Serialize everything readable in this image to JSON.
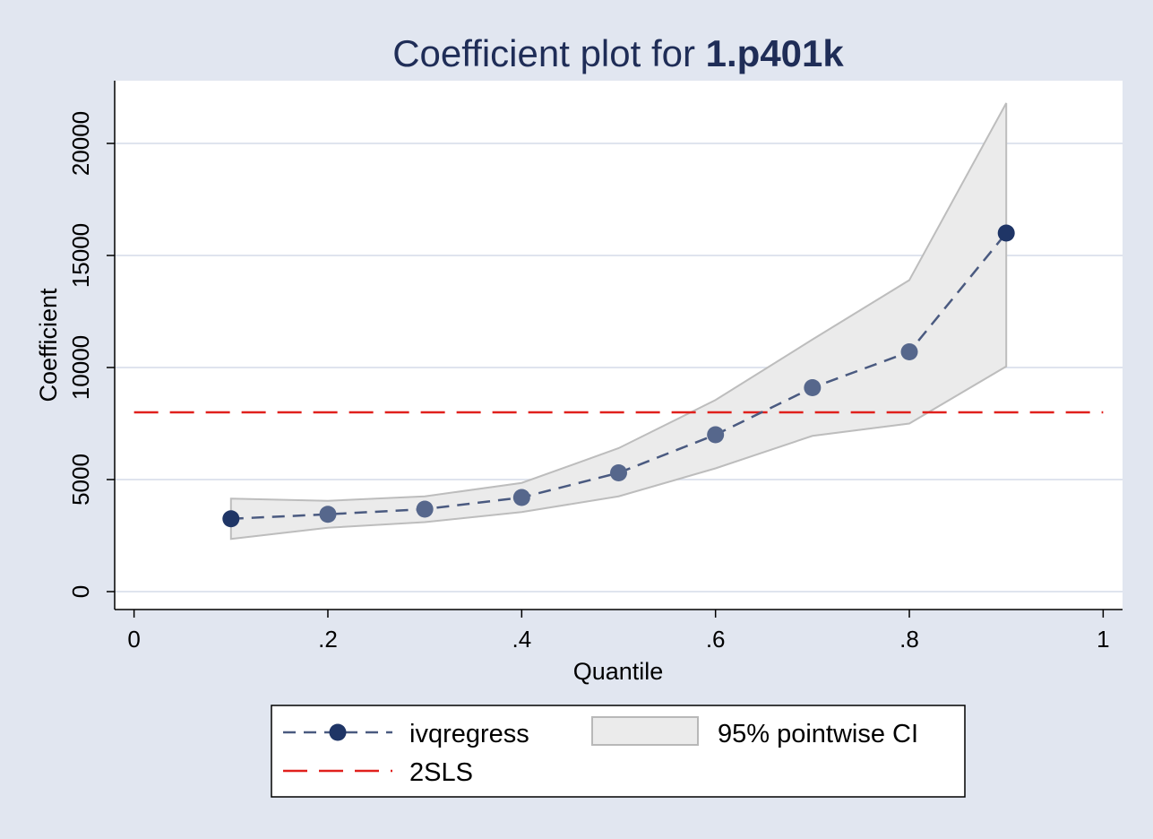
{
  "chart_data": {
    "type": "line",
    "title_prefix": "Coefficient plot for ",
    "title_bold": "1.p401k",
    "xlabel": "Quantile",
    "ylabel": "Coefficient",
    "xlim": [
      -0.02,
      1.02
    ],
    "ylim": [
      -800,
      22800
    ],
    "x_ticks": [
      0,
      0.2,
      0.4,
      0.6,
      0.8,
      1
    ],
    "x_tick_labels": [
      "0",
      ".2",
      ".4",
      ".6",
      ".8",
      "1"
    ],
    "y_ticks": [
      0,
      5000,
      10000,
      15000,
      20000
    ],
    "y_tick_labels": [
      "0",
      "5000",
      "10000",
      "15000",
      "20000"
    ],
    "grid": true,
    "legend_position": "bottom",
    "series": [
      {
        "name": "ivqregress",
        "style": "dashed-markers",
        "color": "#4a5a80",
        "marker_color": "#56678c",
        "x": [
          0.1,
          0.2,
          0.3,
          0.4,
          0.5,
          0.6,
          0.7,
          0.8,
          0.9
        ],
        "y": [
          3250,
          3450,
          3680,
          4200,
          5300,
          7000,
          9100,
          10700,
          16000
        ]
      },
      {
        "name": "95% pointwise CI",
        "style": "band",
        "color": "#ebebeb",
        "x": [
          0.1,
          0.2,
          0.3,
          0.4,
          0.5,
          0.6,
          0.7,
          0.8,
          0.9
        ],
        "lower": [
          2350,
          2850,
          3100,
          3550,
          4250,
          5500,
          6950,
          7500,
          10050
        ],
        "upper": [
          4150,
          4050,
          4250,
          4850,
          6400,
          8550,
          11250,
          13900,
          21800
        ]
      },
      {
        "name": "2SLS",
        "style": "long-dash",
        "color": "#e0201c",
        "y": 8000
      }
    ]
  },
  "legend": {
    "ivqregress_label": "ivqregress",
    "ci_label": "95% pointwise CI",
    "tsls_label": "2SLS"
  },
  "colors": {
    "background": "#e1e6f0",
    "plot_area": "#ffffff",
    "grid": "#dfe4ee",
    "title": "#1f2d57",
    "marker_edge": "#1f3566"
  }
}
